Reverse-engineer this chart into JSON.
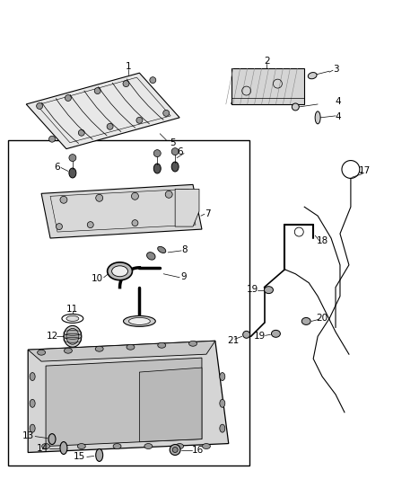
{
  "bg_color": "#ffffff",
  "fig_width": 4.38,
  "fig_height": 5.33,
  "dpi": 100,
  "gray_light": "#d0d0d0",
  "gray_mid": "#b0b0b0",
  "gray_dark": "#888888",
  "gray_darkest": "#444444"
}
